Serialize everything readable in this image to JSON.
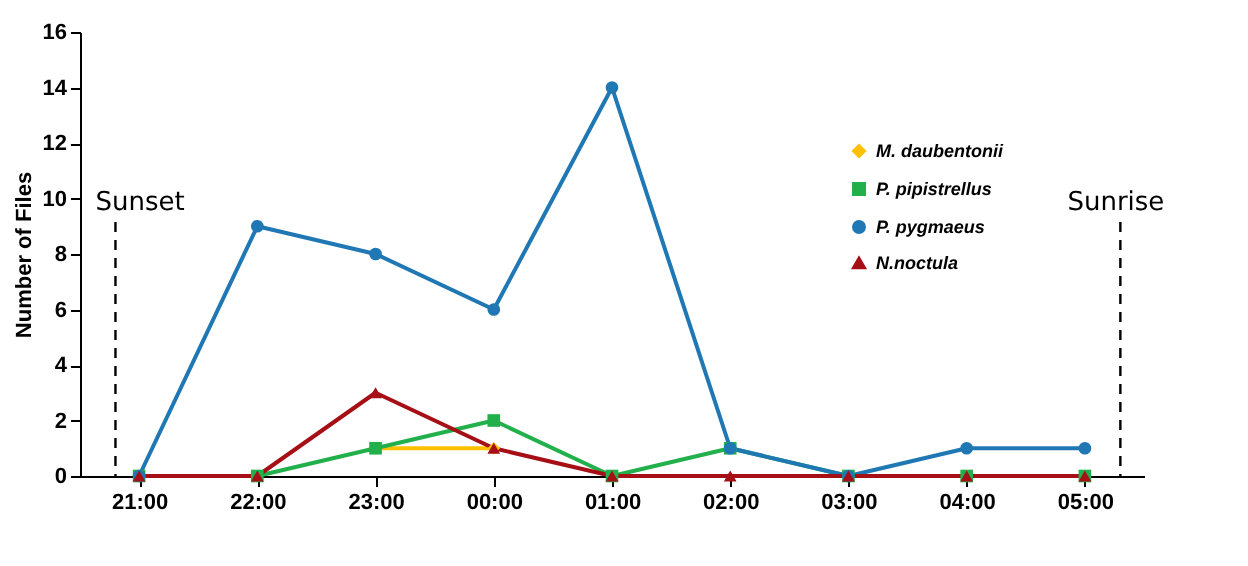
{
  "chart_data": {
    "type": "line",
    "ylabel": "Number of Files",
    "x": [
      "2000-01-01T21:00",
      "2000-01-01T22:00",
      "2000-01-01T23:00",
      "2000-01-02T00:00",
      "2000-01-02T01:00",
      "2000-01-02T02:00",
      "2000-01-02T03:00",
      "2000-01-02T04:00",
      "2000-01-02T05:00"
    ],
    "xlim": [
      "2000-01-01T20:30",
      "2000-01-02T05:30"
    ],
    "xticks": [
      {
        "value": "2000-01-01T21:00",
        "label": "21:00"
      },
      {
        "value": "2000-01-01T22:00",
        "label": "22:00"
      },
      {
        "value": "2000-01-01T23:00",
        "label": "23:00"
      },
      {
        "value": "2000-01-02T00:00",
        "label": "00:00"
      },
      {
        "value": "2000-01-02T01:00",
        "label": "01:00"
      },
      {
        "value": "2000-01-02T02:00",
        "label": "02:00"
      },
      {
        "value": "2000-01-02T03:00",
        "label": "03:00"
      },
      {
        "value": "2000-01-02T04:00",
        "label": "04:00"
      },
      {
        "value": "2000-01-02T05:00",
        "label": "05:00"
      }
    ],
    "ylim": [
      0,
      16
    ],
    "yticks": [
      0,
      2,
      4,
      6,
      8,
      10,
      12,
      14,
      16
    ],
    "grid": false,
    "legend": "right",
    "series": [
      {
        "name": "M. daubentonii",
        "color": "#ffc000",
        "marker": "diamond",
        "values": [
          null,
          null,
          1,
          1,
          null,
          null,
          null,
          null,
          null
        ]
      },
      {
        "name": "P. pipistrellus",
        "color": "#21b04b",
        "marker": "square",
        "values": [
          0,
          0,
          1,
          2,
          0,
          1,
          0,
          0,
          0
        ]
      },
      {
        "name": "P. pygmaeus",
        "color": "#1f77b4",
        "marker": "circle",
        "values": [
          0,
          9,
          8,
          6,
          14,
          1,
          0,
          1,
          1
        ]
      },
      {
        "name": "N.noctula",
        "color": "#a50f15",
        "marker": "triangle",
        "values": [
          0,
          0,
          3,
          1,
          0,
          0,
          0,
          0,
          0
        ]
      }
    ],
    "ref_lines": [
      {
        "axis": "x",
        "value": "2000-01-01T20:48",
        "label": "Sunset",
        "line_style": "dashed",
        "color": "#000000"
      },
      {
        "axis": "x",
        "value": "2000-01-02T05:18",
        "label": "Sunrise",
        "line_style": "dashed",
        "color": "#000000"
      }
    ]
  }
}
